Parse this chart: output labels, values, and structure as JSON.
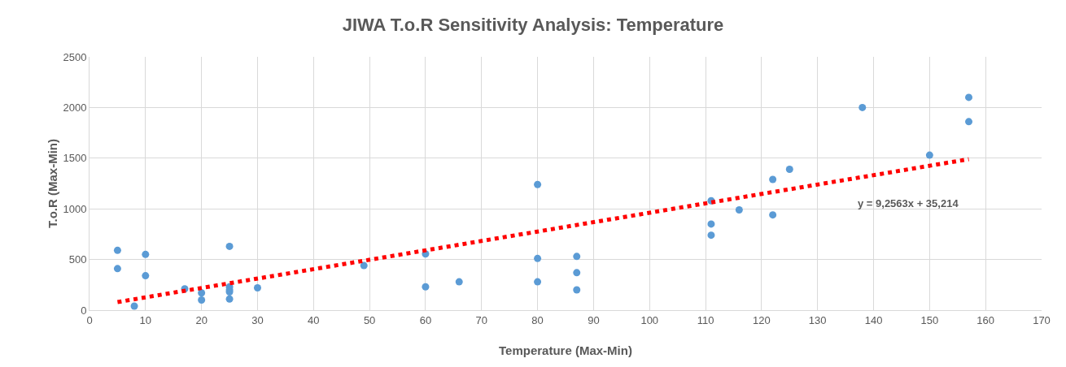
{
  "chart_data": {
    "type": "scatter",
    "title": "JIWA T.o.R Sensitivity Analysis: Temperature",
    "xlabel": "Temperature (Max-Min)",
    "ylabel": "T.o.R (Max-Min)",
    "x": [
      5,
      5,
      8,
      10,
      10,
      17,
      20,
      20,
      25,
      25,
      25,
      25,
      25,
      30,
      49,
      60,
      60,
      66,
      80,
      80,
      80,
      87,
      87,
      87,
      111,
      111,
      111,
      116,
      122,
      122,
      125,
      138,
      150,
      157,
      157
    ],
    "series": [
      {
        "color": "#5b9bd5",
        "values": [
          590,
          410,
          40,
          550,
          340,
          210,
          170,
          100,
          630,
          230,
          200,
          180,
          110,
          220,
          440,
          555,
          230,
          280,
          1240,
          510,
          280,
          530,
          370,
          200,
          1080,
          850,
          740,
          990,
          1290,
          940,
          1390,
          2000,
          1530,
          2100,
          1860
        ]
      },
      {
        "type": "line",
        "color": "#ff0000",
        "line_style": "dotted",
        "marker": "none",
        "x": [
          5,
          157
        ],
        "values": [
          80,
          1490
        ]
      }
    ],
    "annotations": [
      "y = 9,2563x + 35,214"
    ],
    "xlim": [
      0,
      170
    ],
    "xticks": [
      0,
      10,
      20,
      30,
      40,
      50,
      60,
      70,
      80,
      90,
      100,
      110,
      120,
      130,
      140,
      150,
      160,
      170
    ],
    "ylim": [
      0,
      2500
    ],
    "yticks": [
      0,
      500,
      1000,
      1500,
      2000,
      2500
    ],
    "grid": true,
    "marker": "circle"
  }
}
